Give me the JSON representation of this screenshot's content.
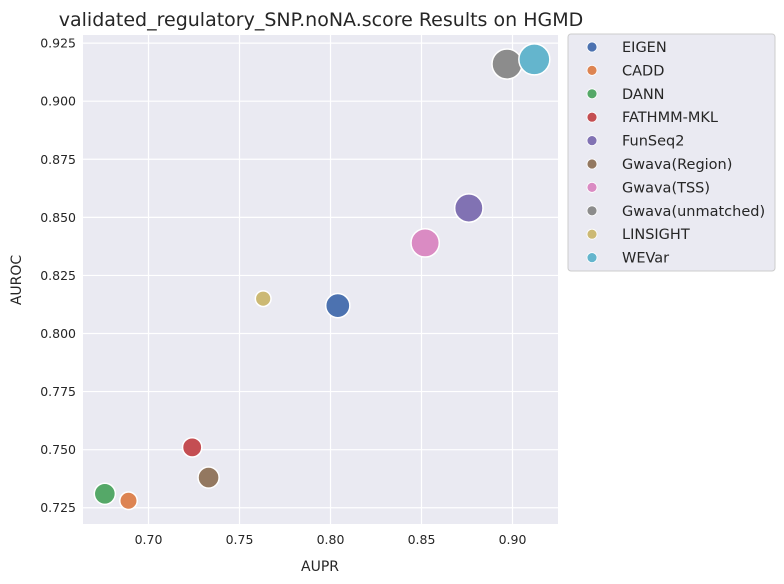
{
  "chart_data": {
    "type": "scatter",
    "title": "validated_regulatory_SNP.noNA.score Results on HGMD",
    "xlabel": "AUPR",
    "ylabel": "AUROC",
    "xlim": [
      0.664,
      0.925
    ],
    "ylim": [
      0.718,
      0.9285
    ],
    "xticks": [
      "0.70",
      "0.75",
      "0.80",
      "0.85",
      "0.90"
    ],
    "yticks": [
      "0.725",
      "0.750",
      "0.775",
      "0.800",
      "0.825",
      "0.850",
      "0.875",
      "0.900",
      "0.925"
    ],
    "grid": true,
    "legend_position": "outside-right",
    "series": [
      {
        "name": "EIGEN",
        "color": "#4c72b0",
        "x": 0.804,
        "y": 0.812,
        "size": 0.62
      },
      {
        "name": "CADD",
        "color": "#dd8452",
        "x": 0.689,
        "y": 0.728,
        "size": 0.25
      },
      {
        "name": "DANN",
        "color": "#55a868",
        "x": 0.676,
        "y": 0.731,
        "size": 0.45
      },
      {
        "name": "FATHMM-MKL",
        "color": "#c44e52",
        "x": 0.724,
        "y": 0.751,
        "size": 0.35
      },
      {
        "name": "FunSeq2",
        "color": "#8172b3",
        "x": 0.876,
        "y": 0.854,
        "size": 0.85
      },
      {
        "name": "Gwava(Region)",
        "color": "#937860",
        "x": 0.733,
        "y": 0.738,
        "size": 0.45
      },
      {
        "name": "Gwava(TSS)",
        "color": "#da8bc3",
        "x": 0.852,
        "y": 0.839,
        "size": 0.85
      },
      {
        "name": "Gwava(unmatched)",
        "color": "#8c8c8c",
        "x": 0.897,
        "y": 0.916,
        "size": 0.95
      },
      {
        "name": "LINSIGHT",
        "color": "#ccb974",
        "x": 0.763,
        "y": 0.815,
        "size": 0.15
      },
      {
        "name": "WEVar",
        "color": "#64b5cd",
        "x": 0.912,
        "y": 0.918,
        "size": 1.0
      }
    ]
  }
}
